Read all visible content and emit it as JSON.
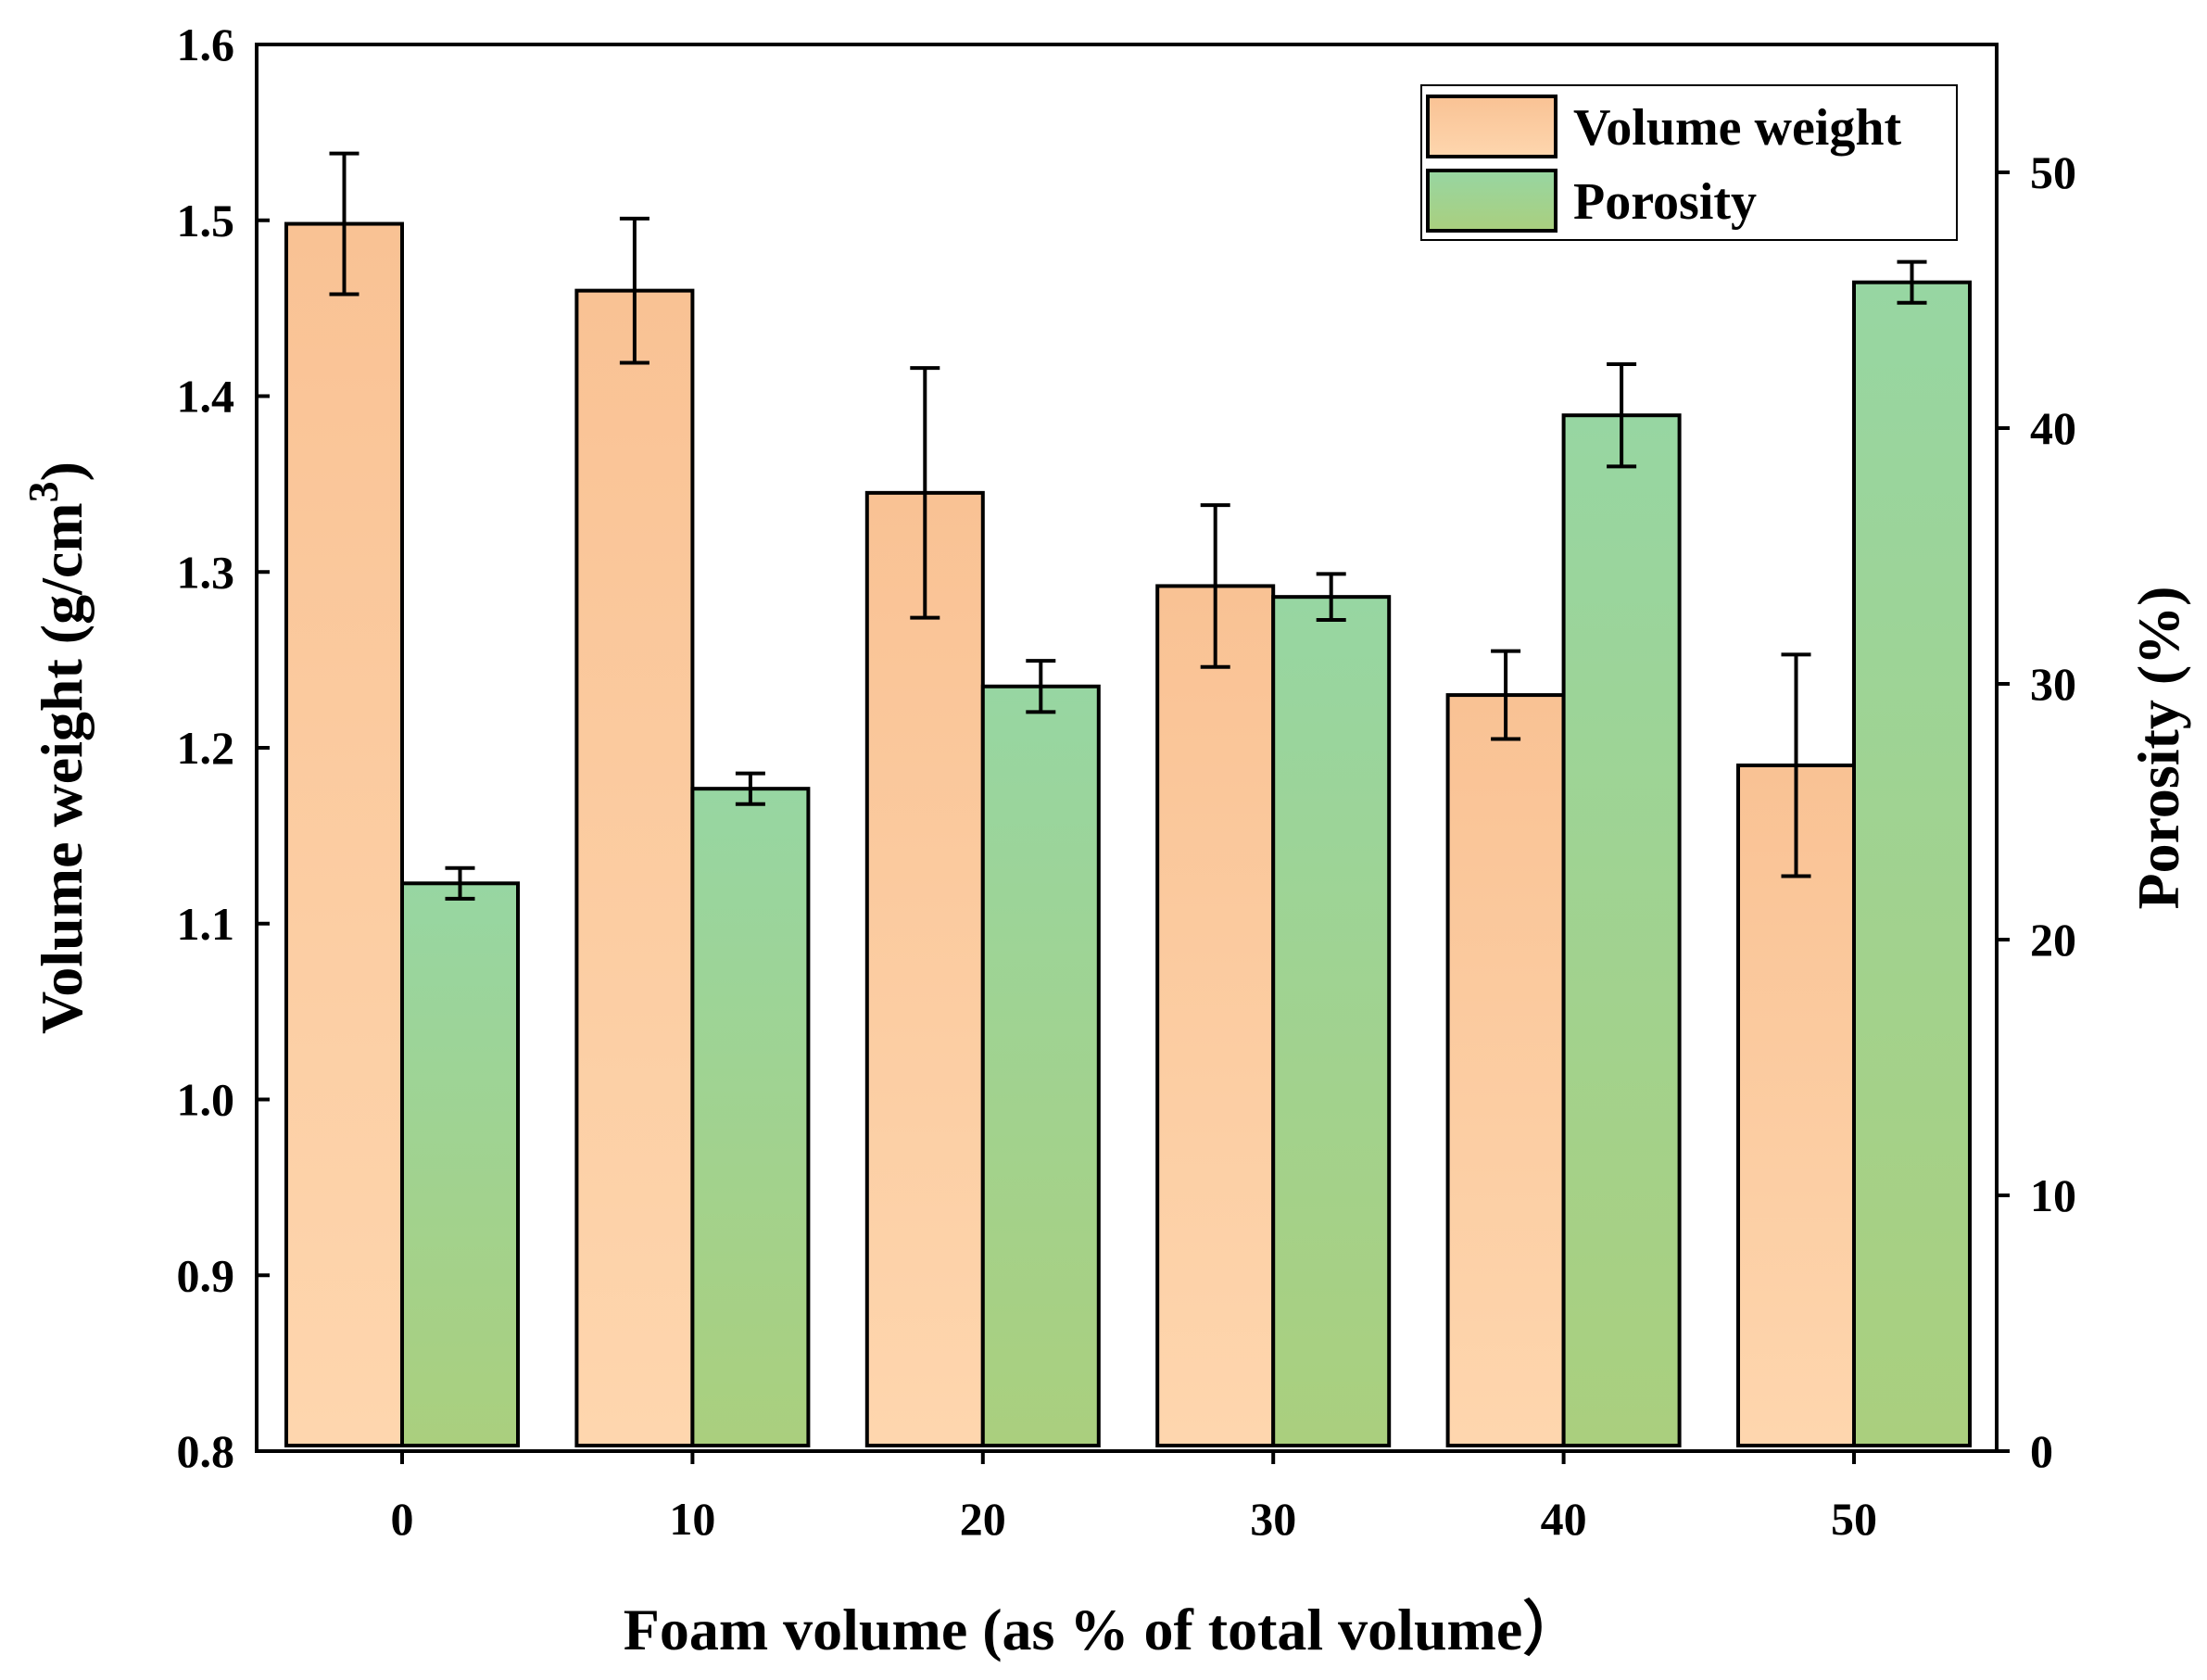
{
  "chart_data": {
    "type": "bar",
    "categories": [
      "0",
      "10",
      "20",
      "30",
      "40",
      "50"
    ],
    "xlabel": "Foam volume (as % of total volume）",
    "ylabel_left": {
      "text": "Volume weight (g/cm",
      "sup": "3",
      "close": ")"
    },
    "ylabel_right": "Porosity (%)",
    "left_axis": {
      "ylim": [
        0.8,
        1.6
      ],
      "ticks": [
        "0.8",
        "0.9",
        "1.0",
        "1.1",
        "1.2",
        "1.3",
        "1.4",
        "1.5",
        "1.6"
      ]
    },
    "right_axis": {
      "ylim": [
        0,
        55
      ],
      "ticks": [
        "0",
        "10",
        "20",
        "30",
        "40",
        "50"
      ]
    },
    "series": [
      {
        "name": "Volume weight",
        "axis": "left",
        "values": [
          1.498,
          1.46,
          1.345,
          1.292,
          1.23,
          1.19
        ],
        "errors": [
          0.04,
          0.041,
          0.071,
          0.046,
          0.025,
          0.063
        ],
        "color_top": "#f9c294",
        "color_bottom": "#fed6ae"
      },
      {
        "name": "Porosity",
        "axis": "right",
        "values": [
          22.2,
          25.9,
          29.9,
          33.4,
          40.5,
          45.7
        ],
        "errors": [
          0.6,
          0.6,
          1.0,
          0.9,
          2.0,
          0.8
        ],
        "color_top": "#97d6a2",
        "color_bottom": "#aacf7e"
      }
    ],
    "legend": {
      "position": "top-right"
    },
    "grid": false
  }
}
